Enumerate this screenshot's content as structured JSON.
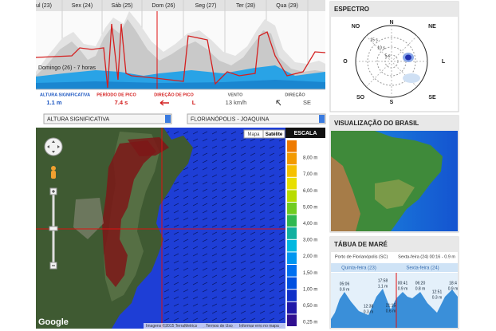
{
  "header_days": [
    "ul (23)",
    "Sex (24)",
    "Sáb (25)",
    "Dom (26)",
    "Seg (27)",
    "Ter (28)",
    "Qua (29)"
  ],
  "forecast": {
    "time_label": "Domingo (26) - 7 horas",
    "stats": [
      {
        "label": "ALTURA SIGNIFICATIVA",
        "value": "1.1 m"
      },
      {
        "label": "PERÍODO DE PICO",
        "value": "7.4 s"
      },
      {
        "label": "DIREÇÃO DE PICO",
        "value": "L"
      },
      {
        "label": "VENTO",
        "value": "13 km/h"
      },
      {
        "label": "DIREÇÃO",
        "value": "SE"
      }
    ]
  },
  "selectors": [
    "ALTURA SIGNIFICATIVA",
    "FLORIANÓPOLIS - JOAQUINA"
  ],
  "map": {
    "buttons": [
      "Mapa",
      "Satélite"
    ],
    "scale_title": "ESCALA",
    "scale_labels": [
      "8,00 m",
      "7,00 m",
      "6,00 m",
      "5,00 m",
      "4,00 m",
      "3,00 m",
      "2,00 m",
      "1,50 m",
      "1,00 m",
      "0,50 m",
      "0,25 m"
    ],
    "logo": "Google",
    "attribution": [
      "Imagens ©2015 TerraMetrics",
      "Termos de Uso",
      "Informar erro no mapa"
    ]
  },
  "spectrum": {
    "title": "ESPECTRO",
    "directions": [
      "N",
      "NE",
      "L",
      "SE",
      "S",
      "SO",
      "O",
      "NO"
    ],
    "periods": [
      "15 s",
      "10 s",
      "5 s"
    ]
  },
  "brazil": {
    "title": "VISUALIZAÇÃO DO BRASIL"
  },
  "tide": {
    "title": "TÁBUA DE MARÉ",
    "port": "Porto de Florianópolis (SC)",
    "current": "Sexta-feira (24) 00:16 - 0.9 m",
    "days": [
      "Quinta-feira (23)",
      "Sexta-feira (24)"
    ],
    "events": [
      {
        "time": "05:06",
        "height": "0.9 m"
      },
      {
        "time": "12:38",
        "height": "0.3 m"
      },
      {
        "time": "17:58",
        "height": "1.1 m"
      },
      {
        "time": "21:15",
        "height": "0.6 m"
      },
      {
        "time": "00:41",
        "height": "0.9 m"
      },
      {
        "time": "06:20",
        "height": "0.8 m"
      },
      {
        "time": "12:51",
        "height": "0.3 m"
      },
      {
        "time": "18:4",
        "height": "0.9 m"
      }
    ]
  }
}
